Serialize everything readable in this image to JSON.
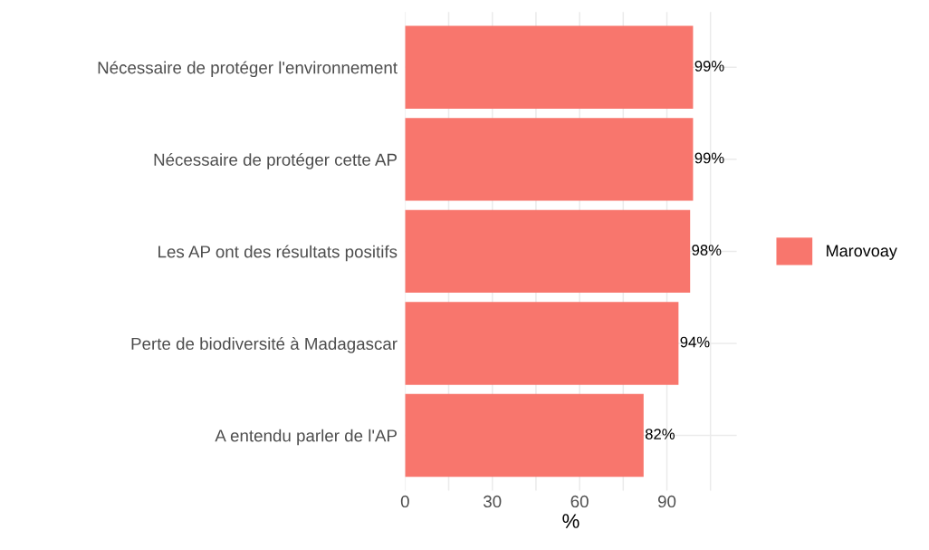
{
  "chart_data": {
    "type": "bar",
    "orientation": "horizontal",
    "xlabel": "%",
    "categories": [
      "Nécessaire de protéger l'environnement",
      "Nécessaire de protéger cette AP",
      "Les AP ont des résultats positifs",
      "Perte de biodiversité à Madagascar",
      "A entendu parler de l'AP"
    ],
    "series": [
      {
        "name": "Marovoay",
        "color": "#f8766d",
        "values": [
          99,
          99,
          98,
          94,
          82
        ],
        "value_labels": [
          "99%",
          "99%",
          "98%",
          "94%",
          "82%"
        ]
      }
    ],
    "xlim": [
      0,
      114
    ],
    "xticks": [
      0,
      {
        "value": 15,
        "label": null
      },
      30,
      {
        "value": 45,
        "label": null
      },
      60,
      {
        "value": 75,
        "label": null
      },
      90,
      {
        "value": 105,
        "label": null
      }
    ],
    "grid": true,
    "legend": "right"
  }
}
